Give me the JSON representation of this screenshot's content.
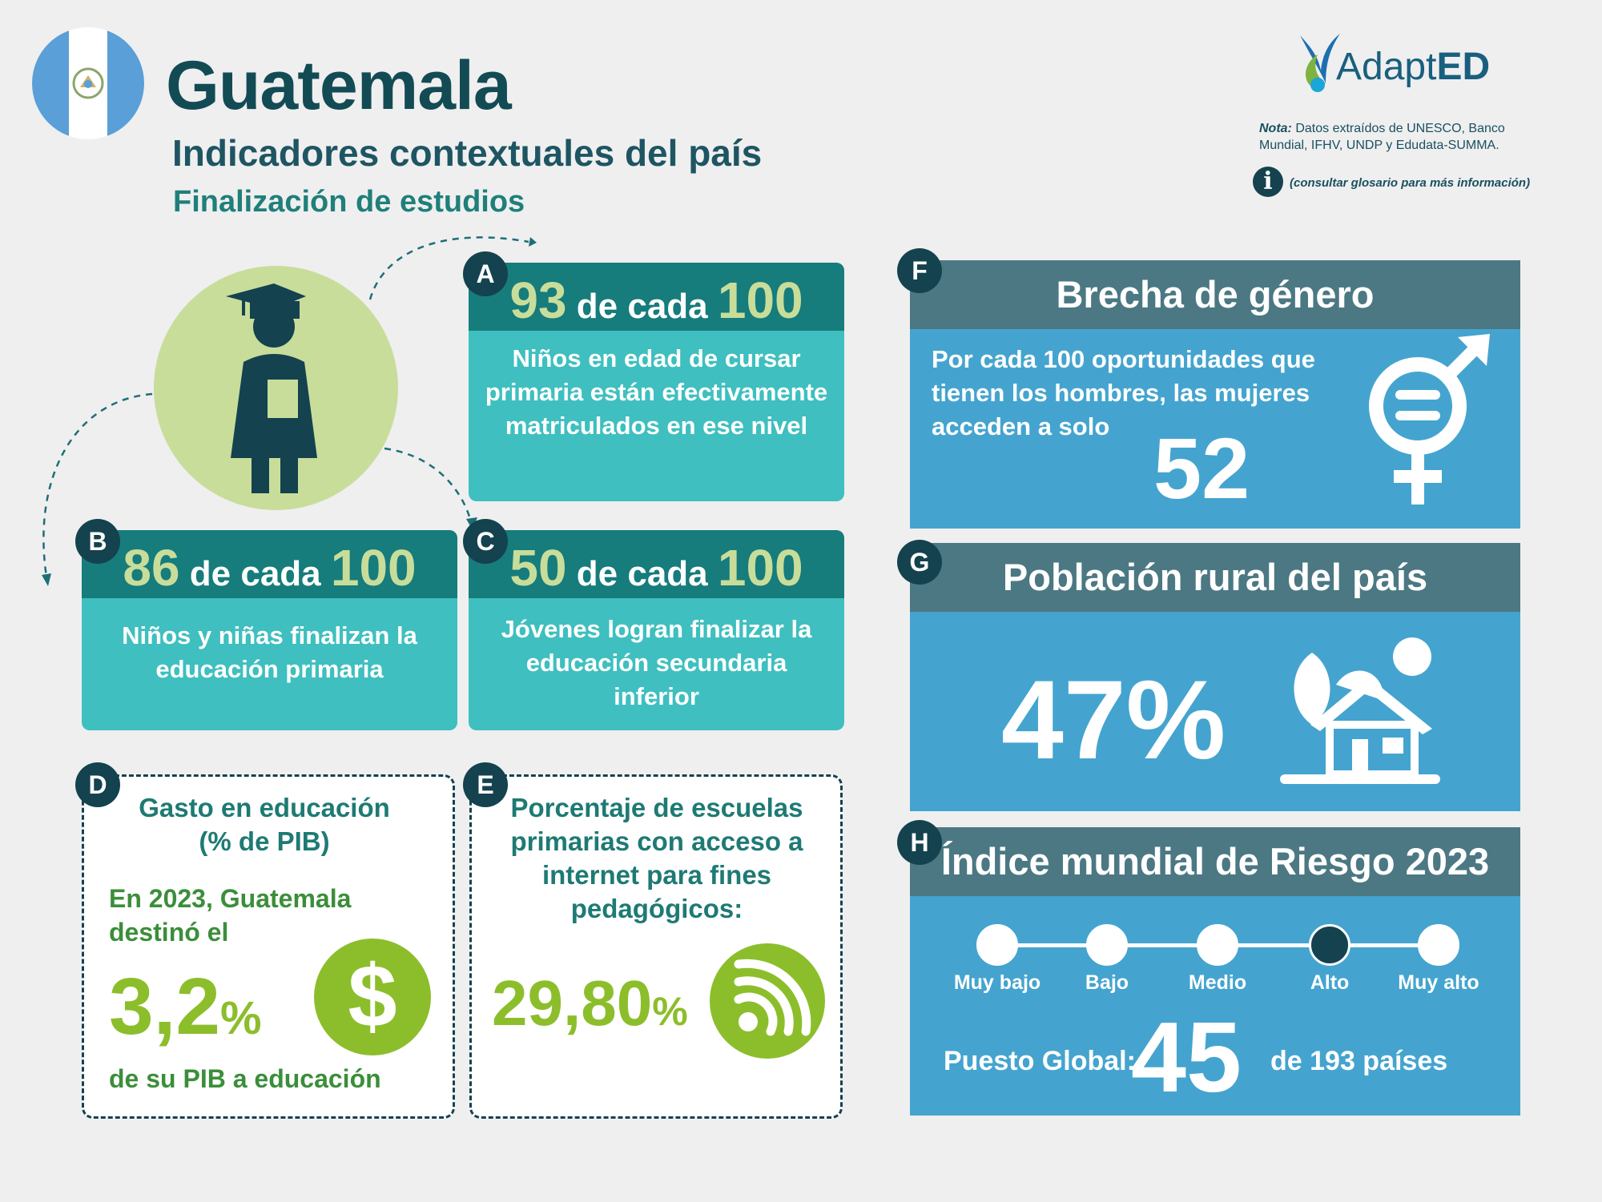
{
  "header": {
    "country": "Guatemala",
    "subtitle": "Indicadores contextuales del país",
    "section": "Finalización de estudios"
  },
  "logo": {
    "brand_prefix": "Adapt",
    "brand_suffix": "ED"
  },
  "note": {
    "label": "Nota:",
    "text": " Datos extraídos de UNESCO, Banco Mundial, IFHV, UNDP y Edudata-SUMMA."
  },
  "info": {
    "icon": "info-icon",
    "text": "(consultar glosario para más información)"
  },
  "colors": {
    "teal_dark": "#167c7c",
    "teal": "#3fbfbf",
    "green_light": "#c8dd9a",
    "green": "#8cbe2b",
    "blue": "#44a4cf",
    "slate": "#4b7883",
    "navy": "#14424f"
  },
  "cards": {
    "a": {
      "badge": "A",
      "value": "93",
      "mid": " de cada ",
      "total": "100",
      "text": "Niños en edad de cursar primaria están efectivamente matriculados en ese nivel"
    },
    "b": {
      "badge": "B",
      "value": "86",
      "mid": " de cada ",
      "total": "100",
      "text": "Niños y niñas finalizan la educación primaria"
    },
    "c": {
      "badge": "C",
      "value": "50",
      "mid": " de cada ",
      "total": "100",
      "text": "Jóvenes logran finalizar la educación secundaria inferior"
    }
  },
  "d": {
    "badge": "D",
    "title": "Gasto en educación (% de PIB)",
    "intro": "En 2023, Guatemala destinó el",
    "value": "3,2",
    "unit": "%",
    "outro": "de su PIB a educación",
    "icon": "dollar-icon"
  },
  "e": {
    "badge": "E",
    "title": "Porcentaje de escuelas primarias con acceso a internet para fines pedagógicos:",
    "value": "29,80",
    "unit": "%",
    "icon": "wifi-icon"
  },
  "f": {
    "badge": "F",
    "title": "Brecha de género",
    "text": "Por cada 100 oportunidades que tienen los hombres, las mujeres acceden a solo",
    "value": "52",
    "icon": "gender-equality-icon"
  },
  "g": {
    "badge": "G",
    "title": "Población rural del país",
    "value": "47%",
    "icon": "rural-house-icon"
  },
  "h": {
    "badge": "H",
    "title": "Índice mundial de Riesgo 2023",
    "levels": [
      "Muy bajo",
      "Bajo",
      "Medio",
      "Alto",
      "Muy alto"
    ],
    "selected_index": 3,
    "rank_label": "Puesto Global:",
    "rank": "45",
    "rank_total": "de 193 países"
  }
}
